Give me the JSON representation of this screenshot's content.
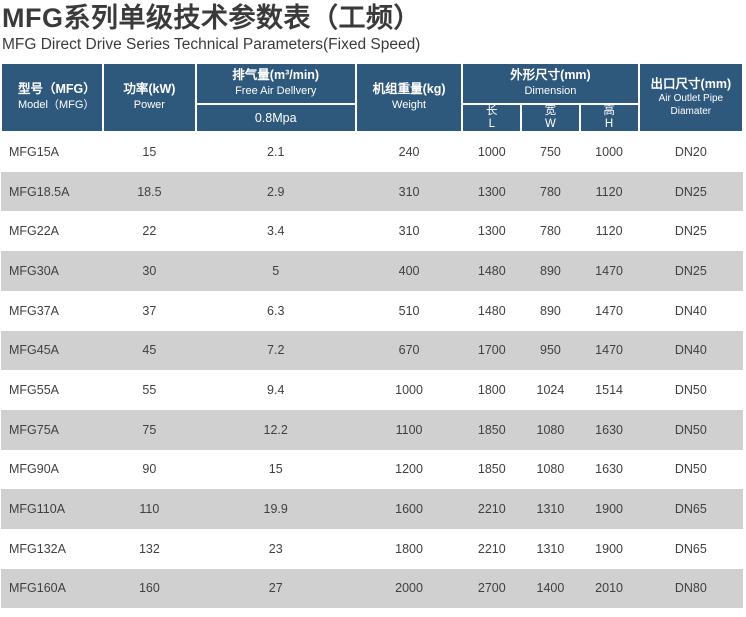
{
  "page": {
    "title": "MFG系列单级技术参数表（工频）",
    "subtitle": "MFG Direct Drive Series Technical Parameters(Fixed Speed)"
  },
  "colors": {
    "header_bg": "#2f597c",
    "header_text": "#ffffff",
    "row_alt_bg": "#d0d0d0",
    "row_bg": "#ffffff",
    "data_text": "#404040",
    "title_text": "#3a3a3a"
  },
  "table": {
    "header": {
      "model_cn": "型号（MFG）",
      "model_en": "Model（MFG）",
      "power_cn": "功率(kW)",
      "power_en": "Power",
      "fad_cn": "排气量(m³/min)",
      "fad_en": "Free Air Dellvery",
      "fad_pressure": "0.8Mpa",
      "weight_cn": "机组重量(kg)",
      "weight_en": "Weight",
      "dimension_cn": "外形尺寸(mm)",
      "dimension_en": "Dimension",
      "dim_l_cn": "长",
      "dim_l_en": "L",
      "dim_w_cn": "宽",
      "dim_w_en": "W",
      "dim_h_cn": "高",
      "dim_h_en": "H",
      "outlet_cn": "出口尺寸(mm)",
      "outlet_en": "Air Outlet Pipe Diamater"
    },
    "cell_names": [
      "model-cell",
      "power-cell",
      "fad-cell",
      "weight-cell",
      "dim-l-cell",
      "dim-w-cell",
      "dim-h-cell",
      "outlet-cell"
    ],
    "rows": [
      [
        "MFG15A",
        "15",
        "2.1",
        "240",
        "1000",
        "750",
        "1000",
        "DN20"
      ],
      [
        "MFG18.5A",
        "18.5",
        "2.9",
        "310",
        "1300",
        "780",
        "1120",
        "DN25"
      ],
      [
        "MFG22A",
        "22",
        "3.4",
        "310",
        "1300",
        "780",
        "1120",
        "DN25"
      ],
      [
        "MFG30A",
        "30",
        "5",
        "400",
        "1480",
        "890",
        "1470",
        "DN25"
      ],
      [
        "MFG37A",
        "37",
        "6.3",
        "510",
        "1480",
        "890",
        "1470",
        "DN40"
      ],
      [
        "MFG45A",
        "45",
        "7.2",
        "670",
        "1700",
        "950",
        "1470",
        "DN40"
      ],
      [
        "MFG55A",
        "55",
        "9.4",
        "1000",
        "1800",
        "1024",
        "1514",
        "DN50"
      ],
      [
        "MFG75A",
        "75",
        "12.2",
        "1100",
        "1850",
        "1080",
        "1630",
        "DN50"
      ],
      [
        "MFG90A",
        "90",
        "15",
        "1200",
        "1850",
        "1080",
        "1630",
        "DN50"
      ],
      [
        "MFG110A",
        "110",
        "19.9",
        "1600",
        "2210",
        "1310",
        "1900",
        "DN65"
      ],
      [
        "MFG132A",
        "132",
        "23",
        "1800",
        "2210",
        "1310",
        "1900",
        "DN65"
      ],
      [
        "MFG160A",
        "160",
        "27",
        "2000",
        "2700",
        "1400",
        "2010",
        "DN80"
      ]
    ]
  }
}
